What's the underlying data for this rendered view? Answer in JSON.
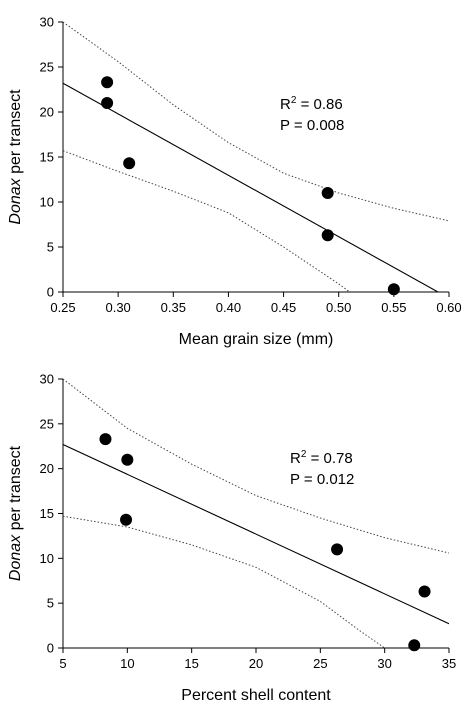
{
  "chart_data": [
    {
      "type": "scatter",
      "xlabel": "Mean grain size (mm)",
      "ylabel_italic": "Donax",
      "ylabel_rest": " per transect",
      "xlim": [
        0.25,
        0.6
      ],
      "ylim": [
        0,
        30
      ],
      "xticks": [
        "0.25",
        "0.30",
        "0.35",
        "0.40",
        "0.45",
        "0.50",
        "0.55",
        "0.60"
      ],
      "yticks": [
        "0",
        "5",
        "10",
        "15",
        "20",
        "25",
        "30"
      ],
      "x": [
        0.29,
        0.29,
        0.31,
        0.49,
        0.49,
        0.55
      ],
      "y": [
        23.3,
        21.0,
        14.3,
        11.0,
        6.3,
        0.3
      ],
      "fit": {
        "x": [
          0.25,
          0.59
        ],
        "y": [
          23.2,
          0.0
        ]
      },
      "ci_upper": {
        "x": [
          0.25,
          0.3,
          0.35,
          0.4,
          0.45,
          0.5,
          0.55,
          0.6
        ],
        "y": [
          30.0,
          25.6,
          20.8,
          16.6,
          13.2,
          11.0,
          9.3,
          7.9
        ]
      },
      "ci_lower": {
        "x": [
          0.25,
          0.3,
          0.35,
          0.4,
          0.45,
          0.5,
          0.51
        ],
        "y": [
          15.7,
          13.4,
          11.2,
          8.8,
          5.0,
          0.9,
          0.0
        ]
      },
      "r2_label": "R",
      "r2_sup": "2",
      "r2_value": " = 0.86",
      "p_text": "P = 0.008"
    },
    {
      "type": "scatter",
      "xlabel": "Percent shell content",
      "ylabel_italic": "Donax",
      "ylabel_rest": " per transect",
      "xlim": [
        5,
        35
      ],
      "ylim": [
        0,
        30
      ],
      "xticks": [
        "5",
        "10",
        "15",
        "20",
        "25",
        "30",
        "35"
      ],
      "yticks": [
        "0",
        "5",
        "10",
        "15",
        "20",
        "25",
        "30"
      ],
      "x": [
        8.3,
        10.0,
        9.9,
        26.3,
        33.1,
        32.3
      ],
      "y": [
        23.3,
        21.0,
        14.3,
        11.0,
        6.3,
        0.3
      ],
      "fit": {
        "x": [
          5,
          35
        ],
        "y": [
          22.7,
          2.7
        ]
      },
      "ci_upper": {
        "x": [
          5,
          10,
          15,
          20,
          25,
          30,
          35
        ],
        "y": [
          30.0,
          24.5,
          20.5,
          17.0,
          14.5,
          12.3,
          10.6
        ]
      },
      "ci_lower": {
        "x": [
          5,
          10,
          15,
          20,
          25,
          28,
          30
        ],
        "y": [
          14.7,
          13.5,
          11.5,
          9.0,
          5.2,
          2.0,
          0.0
        ]
      },
      "r2_label": "R",
      "r2_sup": "2",
      "r2_value": " = 0.78",
      "p_text": "P = 0.012"
    }
  ]
}
